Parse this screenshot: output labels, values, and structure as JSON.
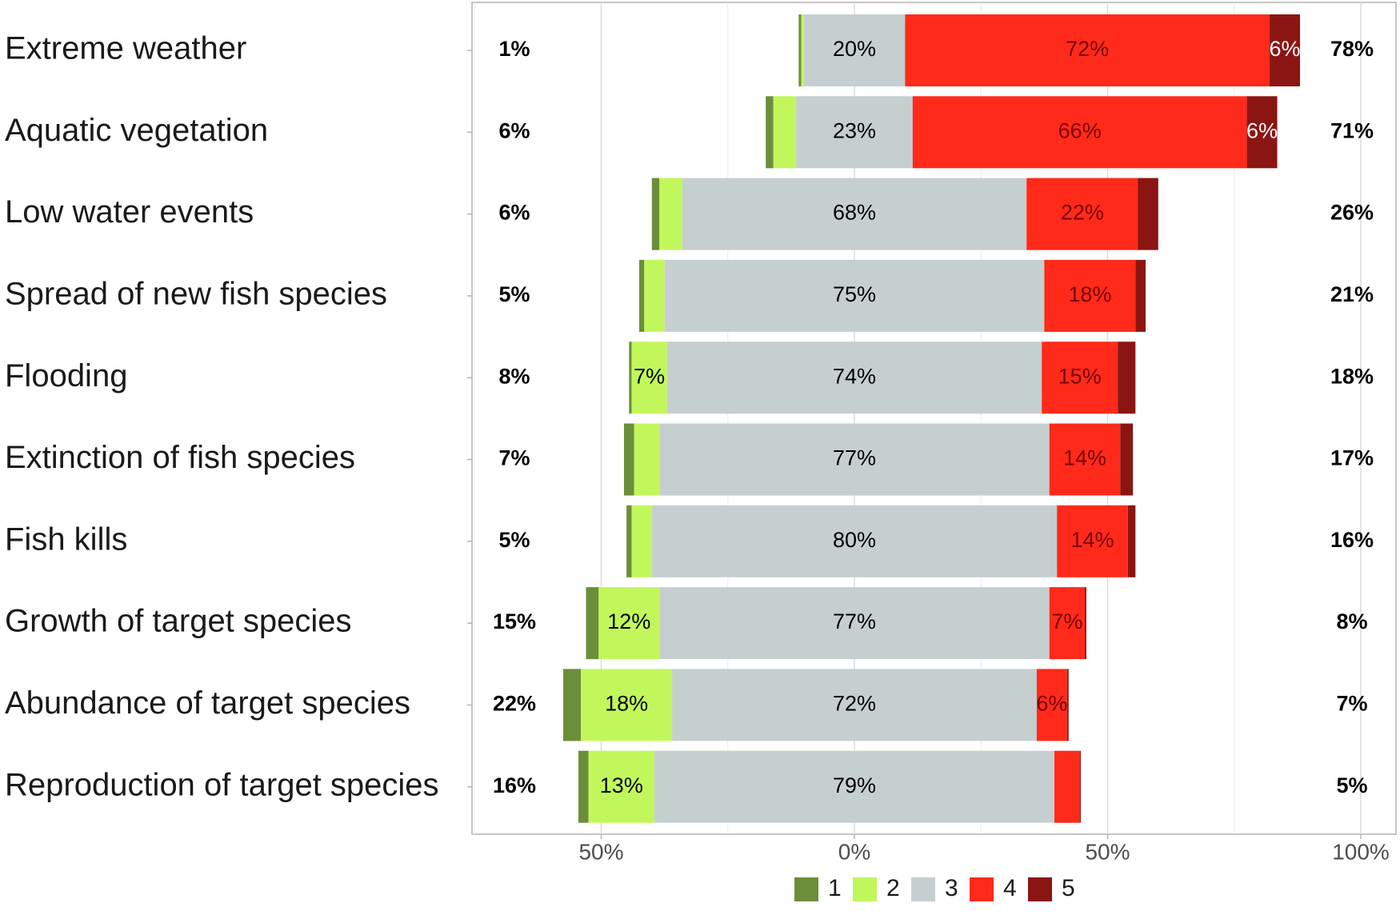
{
  "chart_data": {
    "type": "bar",
    "orientation": "horizontal",
    "stacked": true,
    "diverging": true,
    "categories": [
      "Extreme weather",
      "Aquatic vegetation",
      "Low water events",
      "Spread of new fish species",
      "Flooding",
      "Extinction of fish species",
      "Fish kills",
      "Growth of target species",
      "Abundance of target species",
      "Reproduction of target species"
    ],
    "series": [
      {
        "name": "1",
        "color": "#6b8e3a",
        "values": [
          0.5,
          1.5,
          1.5,
          1,
          0.5,
          2,
          1,
          2.5,
          3.5,
          2
        ]
      },
      {
        "name": "2",
        "color": "#c2f75b",
        "values": [
          0.5,
          4.5,
          4.5,
          4,
          7,
          5,
          4,
          12,
          18,
          13
        ]
      },
      {
        "name": "3",
        "color": "#c5cfcf",
        "values": [
          20,
          23,
          68,
          75,
          74,
          77,
          80,
          77,
          72,
          79
        ]
      },
      {
        "name": "4",
        "color": "#ff2a1a",
        "values": [
          72,
          66,
          22,
          18,
          15,
          14,
          14,
          7,
          6,
          5
        ]
      },
      {
        "name": "5",
        "color": "#8b1512",
        "values": [
          6,
          6,
          4,
          2,
          3.5,
          2.5,
          1.5,
          0.3,
          0.3,
          0.2
        ]
      }
    ],
    "segment_labels": [
      [
        "",
        "",
        "20%",
        "72%",
        "6%"
      ],
      [
        "",
        "",
        "23%",
        "66%",
        "6%"
      ],
      [
        "",
        "",
        "68%",
        "22%",
        ""
      ],
      [
        "",
        "",
        "75%",
        "18%",
        ""
      ],
      [
        "",
        "7%",
        "74%",
        "15%",
        ""
      ],
      [
        "",
        "",
        "77%",
        "14%",
        ""
      ],
      [
        "",
        "",
        "80%",
        "14%",
        ""
      ],
      [
        "",
        "12%",
        "77%",
        "7%",
        ""
      ],
      [
        "",
        "18%",
        "72%",
        "6%",
        ""
      ],
      [
        "",
        "13%",
        "79%",
        "",
        ""
      ]
    ],
    "left_totals": [
      "1%",
      "6%",
      "6%",
      "5%",
      "8%",
      "7%",
      "5%",
      "15%",
      "22%",
      "16%"
    ],
    "right_totals": [
      "78%",
      "71%",
      "26%",
      "21%",
      "18%",
      "17%",
      "16%",
      "8%",
      "7%",
      "5%"
    ],
    "x_ticks": [
      {
        "value": -50,
        "label": "50%"
      },
      {
        "value": 0,
        "label": "0%"
      },
      {
        "value": 50,
        "label": "50%"
      },
      {
        "value": 100,
        "label": "100%"
      }
    ],
    "xlim": [
      -75,
      100
    ],
    "grid": true,
    "legend": {
      "position": "bottom",
      "labels": [
        "1",
        "2",
        "3",
        "4",
        "5"
      ]
    },
    "title": "",
    "xlabel": "",
    "ylabel": ""
  }
}
